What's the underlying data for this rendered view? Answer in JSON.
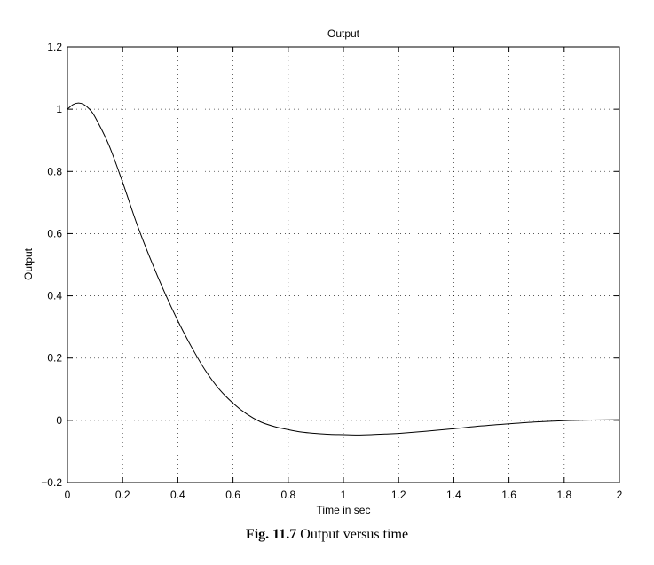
{
  "chart_data": {
    "type": "line",
    "title": "Output",
    "xlabel": "Time in sec",
    "ylabel": "Output",
    "xlim": [
      0,
      2
    ],
    "ylim": [
      -0.2,
      1.2
    ],
    "xticks": [
      0,
      0.2,
      0.4,
      0.6,
      0.8,
      1,
      1.2,
      1.4,
      1.6,
      1.8,
      2
    ],
    "xtick_labels": [
      "0",
      "0.2",
      "0.4",
      "0.6",
      "0.8",
      "1",
      "1.2",
      "1.4",
      "1.6",
      "1.8",
      "2"
    ],
    "yticks": [
      -0.2,
      0,
      0.2,
      0.4,
      0.6,
      0.8,
      1,
      1.2
    ],
    "ytick_labels": [
      "−0.2",
      "0",
      "0.2",
      "0.4",
      "0.6",
      "0.8",
      "1",
      "1.2"
    ],
    "grid": true,
    "series": [
      {
        "color": "#000000",
        "x": [
          0,
          0.02,
          0.04,
          0.06,
          0.08,
          0.1,
          0.15,
          0.2,
          0.25,
          0.3,
          0.35,
          0.4,
          0.45,
          0.5,
          0.55,
          0.6,
          0.65,
          0.7,
          0.75,
          0.8,
          0.85,
          0.9,
          0.95,
          1.0,
          1.05,
          1.1,
          1.15,
          1.2,
          1.3,
          1.4,
          1.5,
          1.6,
          1.7,
          1.8,
          1.9,
          2.0
        ],
        "y": [
          1.0,
          1.015,
          1.02,
          1.015,
          1.0,
          0.975,
          0.885,
          0.765,
          0.635,
          0.52,
          0.415,
          0.32,
          0.235,
          0.16,
          0.1,
          0.055,
          0.02,
          -0.005,
          -0.02,
          -0.03,
          -0.038,
          -0.042,
          -0.045,
          -0.046,
          -0.047,
          -0.046,
          -0.044,
          -0.042,
          -0.035,
          -0.027,
          -0.018,
          -0.011,
          -0.005,
          -0.001,
          0.001,
          0.002
        ]
      }
    ]
  },
  "caption": {
    "fig_number": "Fig. 11.7",
    "text": "Output versus time"
  }
}
